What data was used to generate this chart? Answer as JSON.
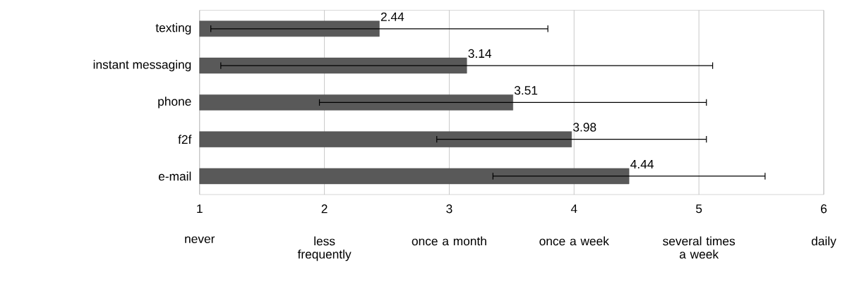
{
  "chart_data": {
    "type": "bar",
    "orientation": "horizontal",
    "categories": [
      "texting",
      "instant messaging",
      "phone",
      "f2f",
      "e-mail"
    ],
    "values": [
      2.44,
      3.14,
      3.51,
      3.98,
      4.44
    ],
    "errors": [
      1.35,
      1.97,
      1.55,
      1.08,
      1.09
    ],
    "color": "#595959",
    "data_labels": true,
    "grid": "x",
    "xlim": [
      1,
      6
    ],
    "xticks": [
      1,
      2,
      3,
      4,
      5,
      6
    ],
    "annotations": [
      "never",
      "less frequently",
      "once a month",
      "once a week",
      "several times a week",
      "daily"
    ]
  }
}
